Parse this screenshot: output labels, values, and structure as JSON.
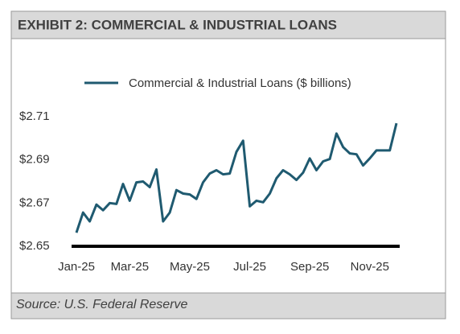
{
  "chart_data": {
    "type": "line",
    "title": "EXHIBIT 2: COMMERCIAL & INDUSTRIAL LOANS",
    "source": "Source: U.S. Federal Reserve",
    "categories": [
      "Jan-25",
      null,
      null,
      null,
      null,
      null,
      null,
      null,
      "Mar-25",
      null,
      null,
      null,
      null,
      null,
      null,
      null,
      null,
      "May-25",
      null,
      null,
      null,
      null,
      null,
      null,
      null,
      null,
      "Jul-25",
      null,
      null,
      null,
      null,
      null,
      null,
      null,
      null,
      "Sep-25",
      null,
      null,
      null,
      null,
      null,
      null,
      null,
      null,
      "Nov-25",
      null,
      null,
      null,
      null
    ],
    "series": [
      {
        "name": "Commercial & Industrial Loans ($ billions)",
        "color": "#1f5a70",
        "values": [
          2.6563,
          2.6656,
          2.6615,
          2.6693,
          2.6667,
          2.67,
          2.6696,
          2.6789,
          2.6711,
          2.6796,
          2.68,
          2.6774,
          2.6856,
          2.6615,
          2.6656,
          2.676,
          2.6744,
          2.674,
          2.6719,
          2.6796,
          2.6837,
          2.6852,
          2.6833,
          2.6837,
          2.6937,
          2.6989,
          2.6685,
          2.6711,
          2.6704,
          2.6744,
          2.6815,
          2.6852,
          2.6833,
          2.6807,
          2.6841,
          2.6907,
          2.6852,
          2.6893,
          2.6904,
          2.7022,
          2.6959,
          2.693,
          2.6926,
          2.6874,
          2.6907,
          2.6944,
          2.6944,
          2.6944,
          2.707
        ]
      }
    ],
    "ylim": [
      2.65,
      2.71
    ],
    "yticks": [
      {
        "value": 2.65,
        "label": "$2.65"
      },
      {
        "value": 2.67,
        "label": "$2.67"
      },
      {
        "value": 2.69,
        "label": "$2.69"
      },
      {
        "value": 2.71,
        "label": "$2.71"
      }
    ],
    "grid": false
  }
}
